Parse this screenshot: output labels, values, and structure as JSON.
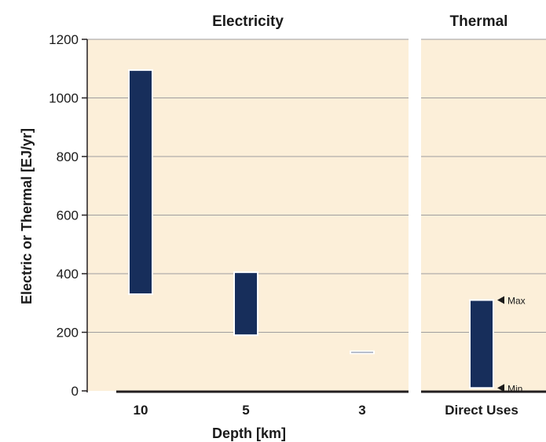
{
  "colors": {
    "panel_bg": "#fcefd9",
    "bar": "#172e5b",
    "grid": "#9e9e9e",
    "axis": "#231f20"
  },
  "chart_data": {
    "type": "bar",
    "subtype": "floating-range",
    "ylabel": "Electric or Thermal [EJ/yr]",
    "xlabel": "Depth [km]",
    "ylim": [
      0,
      1200
    ],
    "yticks": [
      0,
      200,
      400,
      600,
      800,
      1000,
      1200
    ],
    "grid": true,
    "panels": [
      {
        "title": "Electricity",
        "categories": [
          "10",
          "5",
          "3"
        ],
        "min": [
          330,
          190,
          128
        ],
        "max": [
          1095,
          405,
          135
        ]
      },
      {
        "title": "Thermal",
        "categories": [
          "Direct Uses"
        ],
        "min": [
          10
        ],
        "max": [
          310
        ],
        "annotations": [
          "Max",
          "Min"
        ]
      }
    ]
  }
}
